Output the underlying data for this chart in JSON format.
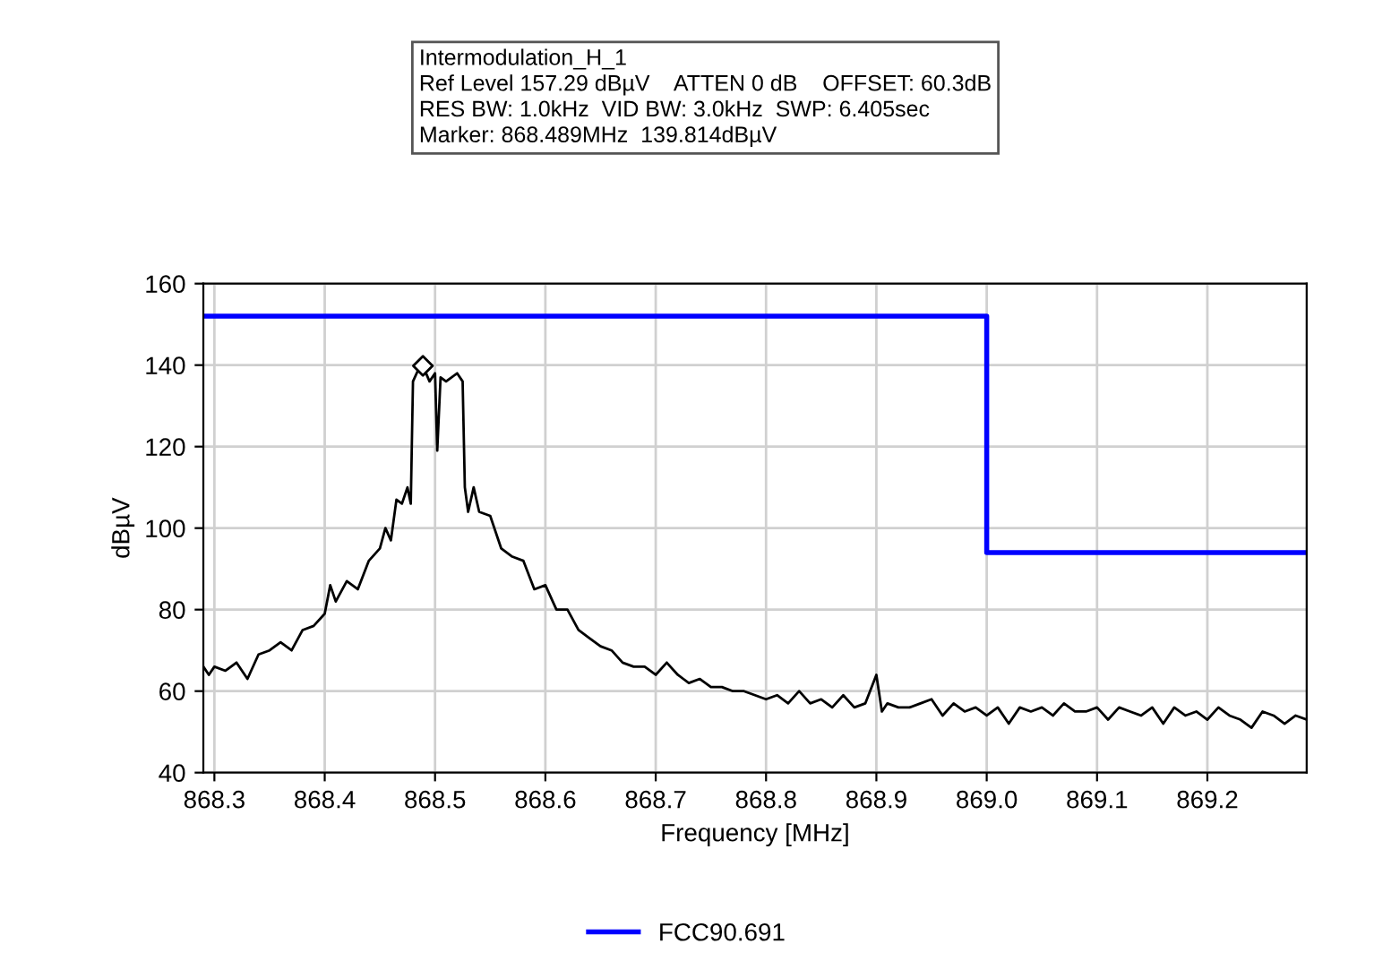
{
  "chart_data": {
    "type": "line",
    "xlabel": "Frequency [MHz]",
    "ylabel": "dBµV",
    "annotations": [
      "Intermodulation_H_1",
      "Ref Level 157.29 dBµV    ATTEN 0 dB    OFFSET: 60.3dB",
      "RES BW: 1.0kHz  VID BW: 3.0kHz  SWP: 6.405sec",
      "Marker: 868.489MHz  139.814dBµV"
    ],
    "xlim": [
      868.29,
      869.29
    ],
    "xticks": [
      {
        "value": 868.3,
        "label": "868.3"
      },
      {
        "value": 868.4,
        "label": "868.4"
      },
      {
        "value": 868.5,
        "label": "868.5"
      },
      {
        "value": 868.6,
        "label": "868.6"
      },
      {
        "value": 868.7,
        "label": "868.7"
      },
      {
        "value": 868.8,
        "label": "868.8"
      },
      {
        "value": 868.9,
        "label": "868.9"
      },
      {
        "value": 869.0,
        "label": "869.0"
      },
      {
        "value": 869.1,
        "label": "869.1"
      },
      {
        "value": 869.2,
        "label": "869.2"
      }
    ],
    "ylim": [
      40,
      160
    ],
    "yticks": [
      40,
      60,
      80,
      100,
      120,
      140,
      160
    ],
    "grid": true,
    "legend": "bottom",
    "series": [
      {
        "color": "#000000",
        "x": [
          868.29,
          868.295,
          868.3,
          868.31,
          868.32,
          868.33,
          868.34,
          868.35,
          868.36,
          868.37,
          868.38,
          868.39,
          868.4,
          868.405,
          868.41,
          868.42,
          868.43,
          868.44,
          868.45,
          868.455,
          868.46,
          868.465,
          868.47,
          868.475,
          868.478,
          868.48,
          868.485,
          868.489,
          868.495,
          868.5,
          868.502,
          868.505,
          868.51,
          868.52,
          868.525,
          868.527,
          868.53,
          868.535,
          868.54,
          868.55,
          868.56,
          868.57,
          868.58,
          868.59,
          868.6,
          868.61,
          868.62,
          868.63,
          868.64,
          868.65,
          868.66,
          868.67,
          868.68,
          868.69,
          868.7,
          868.71,
          868.72,
          868.73,
          868.74,
          868.75,
          868.76,
          868.77,
          868.78,
          868.79,
          868.8,
          868.81,
          868.82,
          868.83,
          868.84,
          868.85,
          868.86,
          868.87,
          868.88,
          868.89,
          868.9,
          868.905,
          868.91,
          868.92,
          868.93,
          868.94,
          868.95,
          868.96,
          868.97,
          868.98,
          868.99,
          869.0,
          869.01,
          869.02,
          869.03,
          869.04,
          869.05,
          869.06,
          869.07,
          869.08,
          869.09,
          869.1,
          869.11,
          869.12,
          869.13,
          869.14,
          869.15,
          869.16,
          869.17,
          869.18,
          869.19,
          869.2,
          869.21,
          869.22,
          869.23,
          869.24,
          869.25,
          869.26,
          869.27,
          869.28,
          869.29
        ],
        "values": [
          66,
          64,
          66,
          65,
          67,
          63,
          69,
          70,
          72,
          70,
          75,
          76,
          79,
          86,
          82,
          87,
          85,
          92,
          95,
          100,
          97,
          107,
          106,
          110,
          106,
          136,
          139,
          139.8,
          136,
          138,
          119,
          137,
          136,
          138,
          136,
          110,
          104,
          110,
          104,
          103,
          95,
          93,
          92,
          85,
          86,
          80,
          80,
          75,
          73,
          71,
          70,
          67,
          66,
          66,
          64,
          67,
          64,
          62,
          63,
          61,
          61,
          60,
          60,
          59,
          58,
          59,
          57,
          60,
          57,
          58,
          56,
          59,
          56,
          57,
          64,
          55,
          57,
          56,
          56,
          57,
          58,
          54,
          57,
          55,
          56,
          54,
          56,
          52,
          56,
          55,
          56,
          54,
          57,
          55,
          55,
          56,
          53,
          56,
          55,
          54,
          56,
          52,
          56,
          54,
          55,
          53,
          56,
          54,
          53,
          51,
          55,
          54,
          52,
          54,
          53
        ]
      },
      {
        "type": "step",
        "name": "FCC90.691",
        "color": "#0000ff",
        "x": [
          868.29,
          869.0,
          869.29
        ],
        "values": [
          152,
          94,
          94
        ]
      },
      {
        "type": "scatter",
        "color": "#000000",
        "marker": "diamond",
        "x": [
          868.489
        ],
        "values": [
          139.8
        ]
      }
    ]
  }
}
